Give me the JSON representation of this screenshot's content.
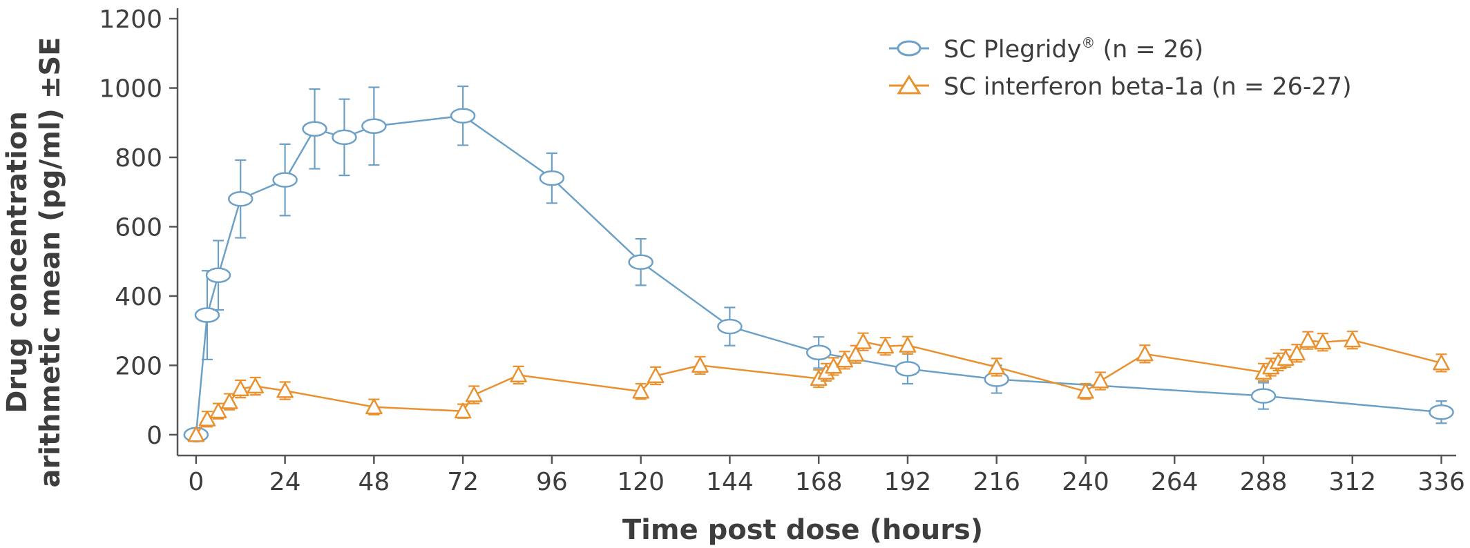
{
  "chart_data": {
    "type": "line",
    "xlabel": "Time post dose (hours)",
    "ylabel_lines": [
      "Drug concentration",
      "arithmetic mean (pg/ml) ±SE"
    ],
    "xlim": [
      -5,
      340
    ],
    "ylim": [
      -60,
      1230
    ],
    "x_ticks": [
      0,
      24,
      48,
      72,
      96,
      120,
      144,
      168,
      192,
      216,
      240,
      264,
      288,
      312,
      336
    ],
    "y_ticks": [
      0,
      200,
      400,
      600,
      800,
      1000,
      1200
    ],
    "grid": false,
    "legend_position": "top-right",
    "series": [
      {
        "name": "SC Plegridy",
        "name_suffix": "®",
        "name_tail": " (n = 26)",
        "color": "#6ca0c6",
        "marker": "ellipse",
        "x": [
          0,
          3,
          6,
          12,
          24,
          32,
          40,
          48,
          72,
          96,
          120,
          144,
          168,
          192,
          216,
          288,
          336
        ],
        "y": [
          0,
          345,
          460,
          680,
          735,
          882,
          858,
          890,
          920,
          740,
          498,
          312,
          237,
          190,
          160,
          112,
          65
        ],
        "error": [
          0,
          128,
          100,
          112,
          103,
          115,
          110,
          112,
          85,
          72,
          67,
          55,
          45,
          43,
          40,
          38,
          32
        ]
      },
      {
        "name": "SC interferon beta-1a (n = 26-27)",
        "color": "#e9902f",
        "marker": "triangle",
        "x": [
          0,
          3,
          6,
          9,
          12,
          16,
          24,
          48,
          72,
          75,
          87,
          120,
          124,
          136,
          168,
          170,
          172,
          175,
          178,
          180,
          186,
          192,
          216,
          240,
          244,
          256,
          288,
          290,
          292,
          294,
          297,
          300,
          304,
          312,
          336
        ],
        "y": [
          0,
          45,
          68,
          95,
          132,
          140,
          127,
          80,
          68,
          115,
          172,
          125,
          170,
          200,
          162,
          180,
          197,
          215,
          232,
          268,
          255,
          258,
          195,
          125,
          155,
          233,
          180,
          195,
          210,
          220,
          235,
          272,
          267,
          273,
          207
        ],
        "error": [
          0,
          22,
          22,
          23,
          25,
          25,
          25,
          22,
          20,
          25,
          25,
          22,
          25,
          25,
          25,
          25,
          25,
          25,
          25,
          25,
          25,
          25,
          25,
          22,
          25,
          25,
          25,
          25,
          25,
          25,
          25,
          25,
          25,
          25,
          25
        ]
      }
    ]
  }
}
